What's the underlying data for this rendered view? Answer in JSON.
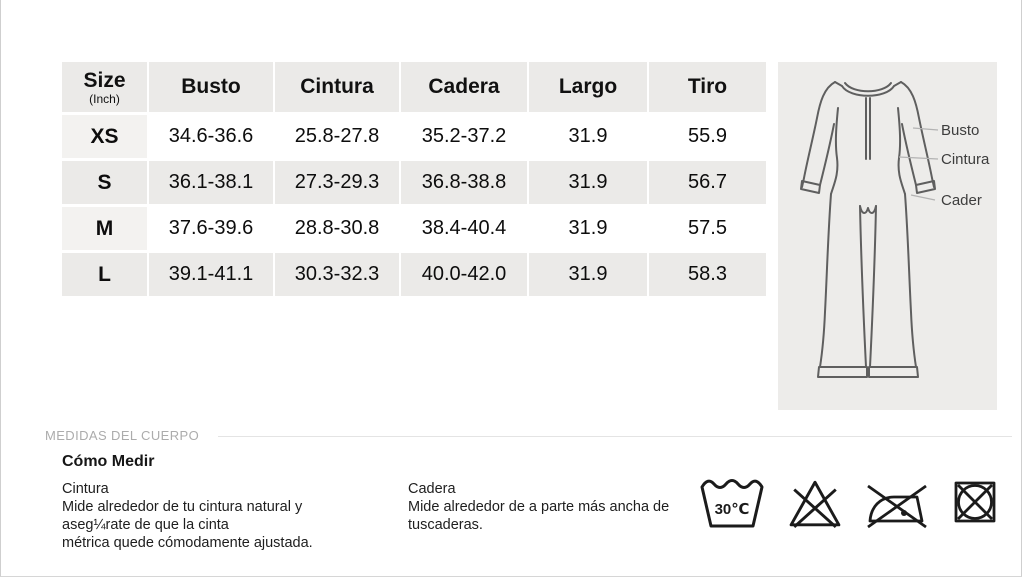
{
  "size_chart": {
    "unit_header": {
      "title": "Size",
      "sub": "(Inch)"
    },
    "columns": [
      "Busto",
      "Cintura",
      "Cadera",
      "Largo",
      "Tiro"
    ],
    "rows": [
      {
        "size": "XS",
        "values": [
          "34.6-36.6",
          "25.8-27.8",
          "35.2-37.2",
          "31.9",
          "55.9"
        ]
      },
      {
        "size": "S",
        "values": [
          "36.1-38.1",
          "27.3-29.3",
          "36.8-38.8",
          "31.9",
          "56.7"
        ]
      },
      {
        "size": "M",
        "values": [
          "37.6-39.6",
          "28.8-30.8",
          "38.4-40.4",
          "31.9",
          "57.5"
        ]
      },
      {
        "size": "L",
        "values": [
          "39.1-41.1",
          "30.3-32.3",
          "40.0-42.0",
          "31.9",
          "58.3"
        ]
      }
    ]
  },
  "diagram": {
    "bust_label": "Busto",
    "waist_label": "Cintura",
    "hip_label": "Cader"
  },
  "body_measures": {
    "section_label": "MEDIDAS DEL CUERPO",
    "how_to_title": "Cómo Medir",
    "waist": {
      "title": "Cintura",
      "lines": [
        "Mide alrededor de tu cintura natural y",
        "aseg¼rate de que la cinta",
        "métrica quede cómodamente ajustada."
      ]
    },
    "hip": {
      "title": "Cadera",
      "lines": [
        "Mide alrededor de a parte más ancha de",
        "tuscaderas."
      ]
    }
  },
  "care": {
    "wash_temperature": "30℃",
    "icon_names": [
      "wash-30-icon",
      "do-not-bleach-icon",
      "do-not-iron-icon",
      "do-not-tumble-dry-icon"
    ]
  },
  "colors": {
    "row_alt": "#ebeae8",
    "panel": "#edecea",
    "muted_label": "#acacac",
    "garment_stroke": "#5f5f5f",
    "icon_stroke": "#1b1b1b"
  }
}
